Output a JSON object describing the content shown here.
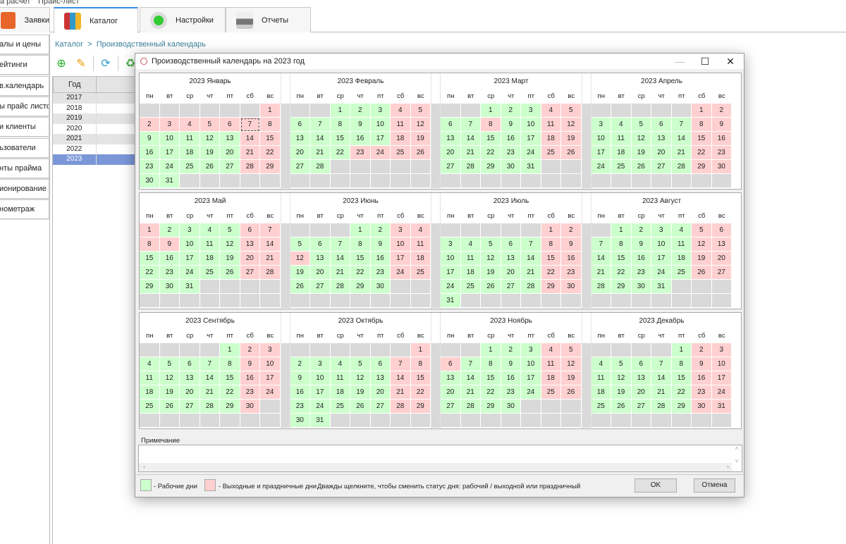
{
  "menu": [
    "а расчет",
    "Прайс-лист"
  ],
  "tabs": [
    {
      "label": "Заявки",
      "icon": "orders-icon"
    },
    {
      "label": "Каталог",
      "icon": "binders-icon",
      "active": true
    },
    {
      "label": "Настройки",
      "icon": "puzzle-gear-icon"
    },
    {
      "label": "Отчеты",
      "icon": "printer-icon"
    }
  ],
  "sidebar": [
    "алы и цены",
    "ейтинги",
    "в.календарь",
    "ы прайс листов",
    "и клиенты",
    "ьзователи",
    "нты прайма",
    "ионирование",
    "нометраж"
  ],
  "breadcrumb": {
    "root": "Каталог",
    "sep": ">",
    "current": "Производственный календарь"
  },
  "grid": {
    "header": "Год",
    "rows": [
      "2017",
      "2018",
      "2019",
      "2020",
      "2021",
      "2022",
      "2023"
    ],
    "selected": "2023"
  },
  "dialog": {
    "title": "Производственный календарь на 2023 год",
    "weekdays": [
      "пн",
      "вт",
      "ср",
      "чт",
      "пт",
      "сб",
      "вс"
    ],
    "year": "2023",
    "months": [
      {
        "name": "2023 Январь",
        "offset": 6,
        "days": 31,
        "holidays": [
          1,
          2,
          3,
          4,
          5,
          6,
          7,
          8,
          14,
          15,
          21,
          22,
          28,
          29
        ]
      },
      {
        "name": "2023 Февраль",
        "offset": 2,
        "days": 28,
        "holidays": [
          4,
          5,
          11,
          12,
          18,
          19,
          23,
          24,
          25,
          26
        ]
      },
      {
        "name": "2023 Март",
        "offset": 2,
        "days": 31,
        "holidays": [
          4,
          5,
          8,
          11,
          12,
          18,
          19,
          25,
          26
        ]
      },
      {
        "name": "2023 Апрель",
        "offset": 5,
        "days": 30,
        "holidays": [
          1,
          2,
          8,
          9,
          15,
          16,
          22,
          23,
          29,
          30
        ]
      },
      {
        "name": "2023 Май",
        "offset": 0,
        "days": 31,
        "holidays": [
          1,
          6,
          7,
          8,
          9,
          13,
          14,
          20,
          21,
          27,
          28
        ]
      },
      {
        "name": "2023 Июнь",
        "offset": 3,
        "days": 30,
        "holidays": [
          3,
          4,
          10,
          11,
          12,
          17,
          18,
          24,
          25
        ]
      },
      {
        "name": "2023 Июль",
        "offset": 5,
        "days": 31,
        "holidays": [
          1,
          2,
          8,
          9,
          15,
          16,
          22,
          23,
          29,
          30
        ]
      },
      {
        "name": "2023 Август",
        "offset": 1,
        "days": 31,
        "holidays": [
          5,
          6,
          12,
          13,
          19,
          20,
          26,
          27
        ]
      },
      {
        "name": "2023 Сентябрь",
        "offset": 4,
        "days": 30,
        "holidays": [
          2,
          3,
          9,
          10,
          16,
          17,
          23,
          24,
          30
        ]
      },
      {
        "name": "2023 Октябрь",
        "offset": 6,
        "days": 31,
        "holidays": [
          1,
          7,
          8,
          14,
          15,
          21,
          22,
          28,
          29
        ]
      },
      {
        "name": "2023 Ноябрь",
        "offset": 2,
        "days": 30,
        "holidays": [
          4,
          5,
          6,
          11,
          12,
          18,
          19,
          25,
          26
        ]
      },
      {
        "name": "2023 Декабрь",
        "offset": 4,
        "days": 31,
        "holidays": [
          2,
          3,
          9,
          10,
          16,
          17,
          23,
          24,
          30,
          31
        ]
      }
    ],
    "focused": {
      "month": 0,
      "day": 7
    },
    "note_label": "Примечание",
    "note_value": "",
    "legend_work": "- Рабочие дни",
    "legend_off": "- Выходные и праздничные дни",
    "hint": "Дважды щелкните, чтобы сменить статус дня: рабочий / выходной или праздничный",
    "ok": "OK",
    "cancel": "Отмена",
    "colors": {
      "work": "#ccffcc",
      "holiday": "#ffd0d0",
      "empty": "#d9d9d9",
      "selected_row": "#7c97d8"
    }
  }
}
